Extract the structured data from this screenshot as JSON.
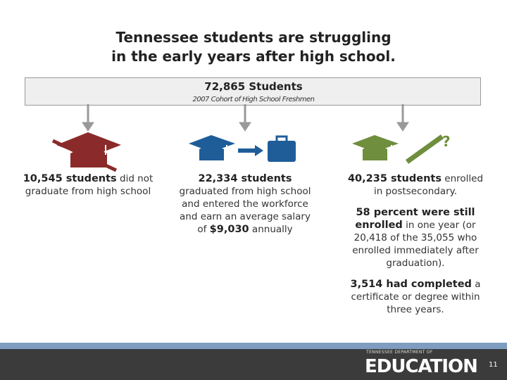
{
  "title": [
    "Tennessee students are struggling",
    "in the early years after high school."
  ],
  "cohort": {
    "count": "72,865 Students",
    "label": "2007 Cohort of High School Freshmen"
  },
  "columns": [
    {
      "color": "#8b2a2a",
      "paragraphs": [
        [
          {
            "text": "10,545 students",
            "style": "bold"
          },
          {
            "text": " did not graduate from high school",
            "style": "normal"
          }
        ]
      ]
    },
    {
      "color": "#1f5d99",
      "paragraphs": [
        [
          {
            "text": "22,334 students",
            "style": "bold"
          },
          {
            "text": " graduated from high school and entered the workforce and earn an average salary of ",
            "style": "normal"
          },
          {
            "text": "$9,030",
            "style": "bold"
          },
          {
            "text": " annually",
            "style": "normal"
          }
        ]
      ]
    },
    {
      "color": "#6f8e3e",
      "paragraphs": [
        [
          {
            "text": "40,235 students",
            "style": "bold"
          },
          {
            "text": " enrolled in postsecondary.",
            "style": "normal"
          }
        ],
        [
          {
            "text": "58 percent were still enrolled",
            "style": "bold"
          },
          {
            "text": " in one year (or 20,418 of the 35,055 who enrolled immediately after graduation).",
            "style": "normal"
          }
        ],
        [
          {
            "text": "3,514 had completed",
            "style": "bold"
          },
          {
            "text": " a certificate or degree within three years.",
            "style": "normal"
          }
        ]
      ]
    }
  ],
  "footer": {
    "department": "TENNESSEE DEPARTMENT OF",
    "agency": "EDUCATION",
    "page": "11"
  }
}
